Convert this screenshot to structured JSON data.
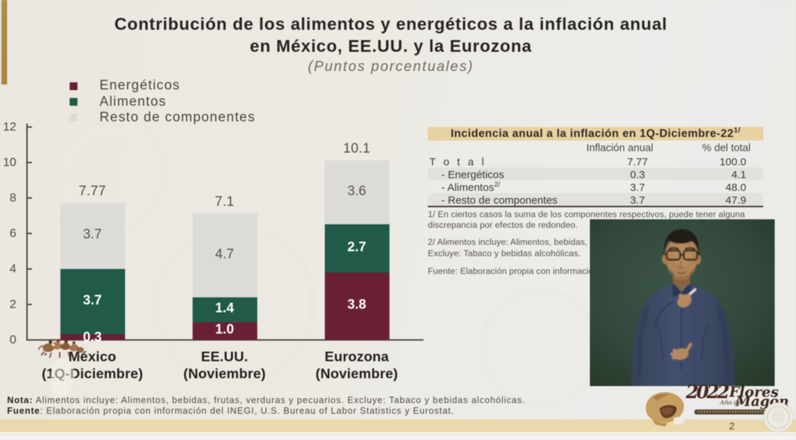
{
  "slide": {
    "title_line1": "Contribución de los alimentos y energéticos a la inflación anual",
    "title_line2": "en México, EE.UU. y la Eurozona",
    "subtitle": "(Puntos porcentuales)"
  },
  "legend": {
    "items": [
      {
        "label": "Energéticos",
        "color": "#6a2034"
      },
      {
        "label": "Alimentos",
        "color": "#215a49"
      },
      {
        "label": "Resto de componentes",
        "color": "#dcdbd7"
      }
    ]
  },
  "chart_data": {
    "type": "bar",
    "stacked": true,
    "title": "Contribución de los alimentos y energéticos a la inflación anual en México, EE.UU. y la Eurozona",
    "units_note": "Puntos porcentuales",
    "categories": [
      {
        "name": "México",
        "period": "(1Q-Diciembre)",
        "total_label": "7.77"
      },
      {
        "name": "EE.UU.",
        "period": "(Noviembre)",
        "total_label": "7.1"
      },
      {
        "name": "Eurozona",
        "period": "(Noviembre)",
        "total_label": "10.1"
      }
    ],
    "series": [
      {
        "name": "Energéticos",
        "color": "#6a2034",
        "label_color": "#ffffff",
        "label_bold": true,
        "values": [
          0.3,
          1.0,
          3.8
        ],
        "value_labels": [
          "0.3",
          "1.0",
          "3.8"
        ]
      },
      {
        "name": "Alimentos",
        "color": "#215a49",
        "label_color": "#ffffff",
        "label_bold": true,
        "values": [
          3.7,
          1.4,
          2.7
        ],
        "value_labels": [
          "3.7",
          "1.4",
          "2.7"
        ]
      },
      {
        "name": "Resto de componentes",
        "color": "#dcdbd7",
        "label_color": "#55514c",
        "label_bold": false,
        "values": [
          3.7,
          4.7,
          3.6
        ],
        "value_labels": [
          "3.7",
          "4.7",
          "3.6"
        ]
      }
    ],
    "ylim": [
      0,
      12
    ],
    "yticks": [
      0,
      2,
      4,
      6,
      8,
      10,
      12
    ],
    "legend_position": "top-left",
    "grid": false
  },
  "table": {
    "title": "Incidencia anual a la inflación en 1Q-Diciembre-22",
    "title_sup": "1/",
    "columns": [
      "Inflación anual",
      "% del total"
    ],
    "rows": [
      {
        "label": "T o t a l",
        "sup": "",
        "col1": "7.77",
        "col2": "100.0",
        "shaded": false
      },
      {
        "label": "- Energéticos",
        "sup": "",
        "col1": "0.3",
        "col2": "4.1",
        "shaded": true
      },
      {
        "label": "- Alimentos",
        "sup": "2/",
        "col1": "3.7",
        "col2": "48.0",
        "shaded": false
      },
      {
        "label": "- Resto de componentes",
        "sup": "",
        "col1": "3.7",
        "col2": "47.9",
        "shaded": true
      }
    ]
  },
  "footnotes": {
    "fn1_line1": "1/ En ciertos casos la suma de los componentes respectivos, puede tener alguna",
    "fn1_line2": "discrepancia por efectos de redondeo.",
    "fn2_line1": "2/ Alimentos incluye: Alimentos, bebidas,",
    "fn2_line2": "Excluye: Tabaco y bebidas alcohólicas.",
    "fn3": "Fuente: Elaboración propia con información"
  },
  "notes": {
    "nota_label": "Nota:",
    "nota_text": " Alimentos incluye: Alimentos, bebidas, frutas, verduras y pecuarios. Excluye: Tabaco y bebidas alcohólicas.",
    "fuente_label": "Fuente",
    "fuente_text": ": Elaboración propia con información del INEGI, U.S. Bureau of Labor Statistics y Eurostat."
  },
  "footer": {
    "page_number": "2",
    "logo_year": "2022",
    "logo_name_line1": "Flores",
    "logo_name_line2": "Magón",
    "logo_sub": "Año de"
  }
}
